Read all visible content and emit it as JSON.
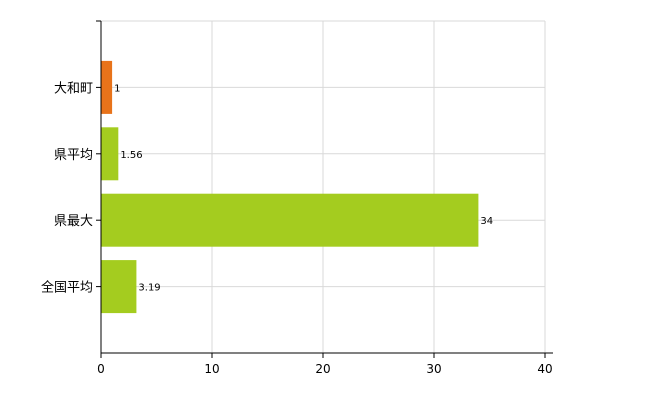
{
  "chart_data": {
    "type": "bar",
    "orientation": "horizontal",
    "categories": [
      "大和町",
      "県平均",
      "県最大",
      "全国平均"
    ],
    "values": [
      1,
      1.56,
      34,
      3.19
    ],
    "data_labels": [
      "1",
      "1.56",
      "34",
      "3.19"
    ],
    "bar_colors": [
      "#e8731a",
      "#a4cc1f",
      "#a4cc1f",
      "#a4cc1f"
    ],
    "xlim": [
      0,
      40
    ],
    "x_ticks": [
      0,
      10,
      20,
      30,
      40
    ],
    "x_tick_labels": [
      "0",
      "10",
      "20",
      "30",
      "40"
    ],
    "grid": true,
    "legend": "none",
    "title": "",
    "xlabel": "",
    "ylabel": ""
  }
}
